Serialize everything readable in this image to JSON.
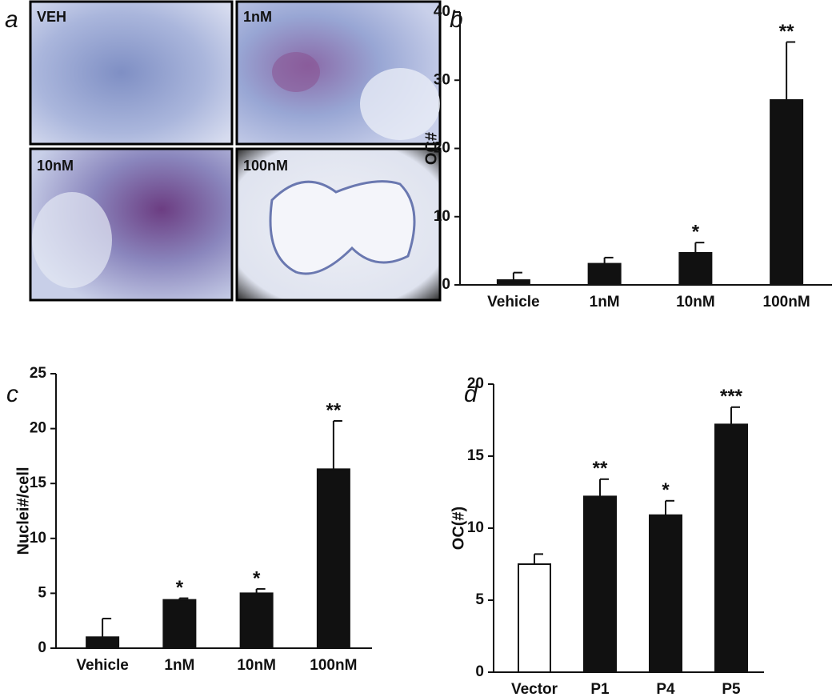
{
  "micrographs": {
    "panel_label": "a",
    "labels": [
      "VEH",
      "1nM",
      "10nM",
      "100nM"
    ]
  },
  "chart_data": [
    {
      "type": "bar",
      "panel_label": "b",
      "ylabel": "OC#",
      "categories": [
        "Vehicle",
        "1nM",
        "10nM",
        "100nM"
      ],
      "values": [
        0.7,
        3.1,
        4.7,
        27.1
      ],
      "errors": [
        1.1,
        0.9,
        1.5,
        8.5
      ],
      "annotations": [
        null,
        null,
        "*",
        "**"
      ],
      "colors": [
        "#111111",
        "#111111",
        "#111111",
        "#111111"
      ],
      "ylim": [
        0,
        40
      ],
      "yticks": [
        0,
        10,
        20,
        30,
        40
      ]
    },
    {
      "type": "bar",
      "panel_label": "c",
      "ylabel": "Nuclei#/cell",
      "categories": [
        "Vehicle",
        "1nM",
        "10nM",
        "100nM"
      ],
      "values": [
        1.0,
        4.4,
        5.0,
        16.3
      ],
      "errors": [
        1.7,
        0.15,
        0.4,
        4.4
      ],
      "annotations": [
        null,
        "*",
        "*",
        "**"
      ],
      "colors": [
        "#111111",
        "#111111",
        "#111111",
        "#111111"
      ],
      "ylim": [
        0,
        25
      ],
      "yticks": [
        0,
        5,
        10,
        15,
        20,
        25
      ]
    },
    {
      "type": "bar",
      "panel_label": "d",
      "ylabel": "OC(#)",
      "categories": [
        "Vector",
        "P1",
        "P4",
        "P5"
      ],
      "values": [
        7.5,
        12.2,
        10.9,
        17.2
      ],
      "errors": [
        0.7,
        1.2,
        1.0,
        1.2
      ],
      "annotations": [
        null,
        "**",
        "*",
        "***"
      ],
      "colors": [
        "#ffffff",
        "#111111",
        "#111111",
        "#111111"
      ],
      "ylim": [
        0,
        20
      ],
      "yticks": [
        0,
        5,
        10,
        15,
        20
      ]
    }
  ]
}
